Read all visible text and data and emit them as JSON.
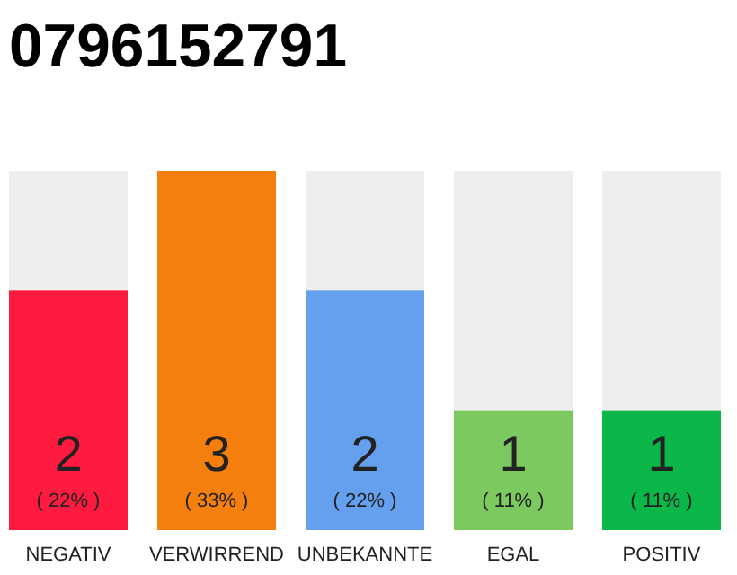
{
  "chart_data": {
    "type": "bar",
    "title": "0796152791",
    "categories": [
      "NEGATIV",
      "VERWIRREND",
      "UNBEKANNTE",
      "EGAL",
      "POSITIV"
    ],
    "values": [
      2,
      3,
      2,
      1,
      1
    ],
    "colors": [
      "#ff1a40",
      "#f57f0c",
      "#64a0ee",
      "#7cc95f",
      "#0cb74a"
    ],
    "value_labels": [
      "2\n( 22% )",
      "3\n( 33% )",
      "2\n( 22% )",
      "1\n( 11% )",
      "1\n( 11% )"
    ],
    "tick_labels": "x"
  }
}
